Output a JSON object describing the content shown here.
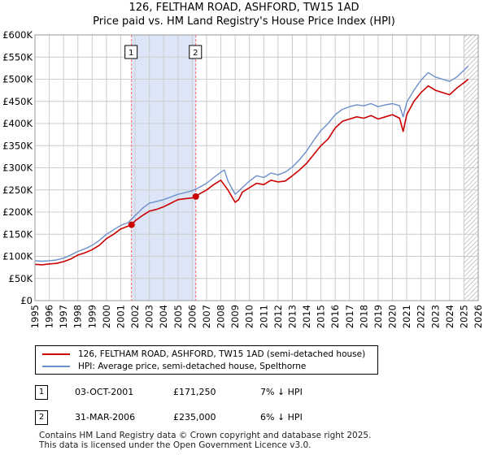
{
  "chart_title_line1": "126, FELTHAM ROAD, ASHFORD, TW15 1AD",
  "chart_title_line2": "Price paid vs. HM Land Registry's House Price Index (HPI)",
  "colors": {
    "property": "#cc0000",
    "hpi": "#6a8fcc",
    "shade": "#dde6f7",
    "marker_line": "#ff6666",
    "grid": "#cccccc"
  },
  "chart_data": {
    "type": "line",
    "title": "126, FELTHAM ROAD, ASHFORD, TW15 1AD — Price paid vs. HM Land Registry's House Price Index (HPI)",
    "xlabel": "",
    "ylabel": "",
    "xlim": [
      1995,
      2026
    ],
    "ylim": [
      0,
      600000
    ],
    "y_ticks": [
      0,
      50000,
      100000,
      150000,
      200000,
      250000,
      300000,
      350000,
      400000,
      450000,
      500000,
      550000,
      600000
    ],
    "y_tick_labels": [
      "£0",
      "£50K",
      "£100K",
      "£150K",
      "£200K",
      "£250K",
      "£300K",
      "£350K",
      "£400K",
      "£450K",
      "£500K",
      "£550K",
      "£600K"
    ],
    "x_ticks": [
      1995,
      1996,
      1997,
      1998,
      1999,
      2000,
      2001,
      2002,
      2003,
      2004,
      2005,
      2006,
      2007,
      2008,
      2009,
      2010,
      2011,
      2012,
      2013,
      2014,
      2015,
      2016,
      2017,
      2018,
      2019,
      2020,
      2021,
      2022,
      2023,
      2024,
      2025,
      2026
    ],
    "x_tick_labels": [
      "1995",
      "1996",
      "1997",
      "1998",
      "1999",
      "2000",
      "2001",
      "2002",
      "2003",
      "2004",
      "2005",
      "2006",
      "2007",
      "2008",
      "2009",
      "2010",
      "2011",
      "2012",
      "2013",
      "2014",
      "2015",
      "2016",
      "2017",
      "2018",
      "2019",
      "2020",
      "2021",
      "2022",
      "2023",
      "2024",
      "2025",
      "2026"
    ],
    "grid": true,
    "shaded_region": [
      2001.75,
      2006.25
    ],
    "hatched_region_from": 2025.0,
    "series": [
      {
        "name": "126, FELTHAM ROAD, ASHFORD, TW15 1AD (semi-detached house)",
        "x": [
          1995,
          1995.5,
          1996,
          1996.5,
          1997,
          1997.5,
          1998,
          1998.5,
          1999,
          1999.5,
          2000,
          2000.5,
          2001,
          2001.5,
          2001.75,
          2002,
          2002.5,
          2003,
          2003.5,
          2004,
          2004.5,
          2005,
          2005.5,
          2006,
          2006.25,
          2006.5,
          2007,
          2007.5,
          2008,
          2008.5,
          2009,
          2009.25,
          2009.5,
          2010,
          2010.5,
          2011,
          2011.5,
          2012,
          2012.5,
          2013,
          2013.5,
          2014,
          2014.5,
          2015,
          2015.5,
          2016,
          2016.5,
          2017,
          2017.5,
          2018,
          2018.5,
          2019,
          2019.5,
          2020,
          2020.5,
          2020.75,
          2021,
          2021.5,
          2022,
          2022.5,
          2023,
          2023.5,
          2024,
          2024.5,
          2025,
          2025.3
        ],
        "values": [
          82000,
          81000,
          83000,
          84000,
          88000,
          94000,
          103000,
          108000,
          115000,
          125000,
          140000,
          150000,
          162000,
          168000,
          171250,
          180000,
          192000,
          202000,
          206000,
          212000,
          220000,
          228000,
          230000,
          232000,
          235000,
          241000,
          250000,
          262000,
          272000,
          250000,
          222000,
          228000,
          245000,
          255000,
          265000,
          262000,
          272000,
          268000,
          270000,
          282000,
          295000,
          310000,
          330000,
          350000,
          365000,
          390000,
          405000,
          410000,
          415000,
          412000,
          418000,
          410000,
          415000,
          420000,
          412000,
          382000,
          420000,
          450000,
          470000,
          485000,
          475000,
          470000,
          465000,
          480000,
          492000,
          500000
        ]
      },
      {
        "name": "HPI: Average price, semi-detached house, Spelthorne",
        "x": [
          1995,
          1995.5,
          1996,
          1996.5,
          1997,
          1997.5,
          1998,
          1998.5,
          1999,
          1999.5,
          2000,
          2000.5,
          2001,
          2001.5,
          2002,
          2002.5,
          2003,
          2003.5,
          2004,
          2004.5,
          2005,
          2005.5,
          2006,
          2006.5,
          2007,
          2007.5,
          2008,
          2008.25,
          2008.5,
          2009,
          2009.5,
          2010,
          2010.5,
          2011,
          2011.5,
          2012,
          2012.5,
          2013,
          2013.5,
          2014,
          2014.5,
          2015,
          2015.5,
          2016,
          2016.5,
          2017,
          2017.5,
          2018,
          2018.5,
          2019,
          2019.5,
          2020,
          2020.5,
          2020.75,
          2021,
          2021.5,
          2022,
          2022.5,
          2023,
          2023.5,
          2024,
          2024.5,
          2025,
          2025.3
        ],
        "values": [
          90000,
          89000,
          90000,
          92000,
          96000,
          103000,
          111000,
          117000,
          125000,
          136000,
          150000,
          160000,
          170000,
          176000,
          192000,
          208000,
          220000,
          224000,
          228000,
          234000,
          240000,
          244000,
          248000,
          256000,
          265000,
          278000,
          290000,
          295000,
          270000,
          240000,
          255000,
          270000,
          282000,
          278000,
          288000,
          284000,
          290000,
          302000,
          318000,
          338000,
          362000,
          384000,
          400000,
          420000,
          432000,
          438000,
          442000,
          440000,
          445000,
          438000,
          442000,
          445000,
          440000,
          415000,
          448000,
          475000,
          498000,
          515000,
          505000,
          500000,
          495000,
          505000,
          520000,
          530000
        ]
      }
    ],
    "transactions": [
      {
        "label": "1",
        "x": 2001.75,
        "value": 171250
      },
      {
        "label": "2",
        "x": 2006.25,
        "value": 235000
      }
    ]
  },
  "legend": {
    "property_label": "126, FELTHAM ROAD, ASHFORD, TW15 1AD (semi-detached house)",
    "hpi_label": "HPI: Average price, semi-detached house, Spelthorne"
  },
  "transactions_table": [
    {
      "num": "1",
      "date": "03-OCT-2001",
      "price": "£171,250",
      "hpi": "7% ↓ HPI"
    },
    {
      "num": "2",
      "date": "31-MAR-2006",
      "price": "£235,000",
      "hpi": "6% ↓ HPI"
    }
  ],
  "footer_line1": "Contains HM Land Registry data © Crown copyright and database right 2025.",
  "footer_line2": "This data is licensed under the Open Government Licence v3.0."
}
